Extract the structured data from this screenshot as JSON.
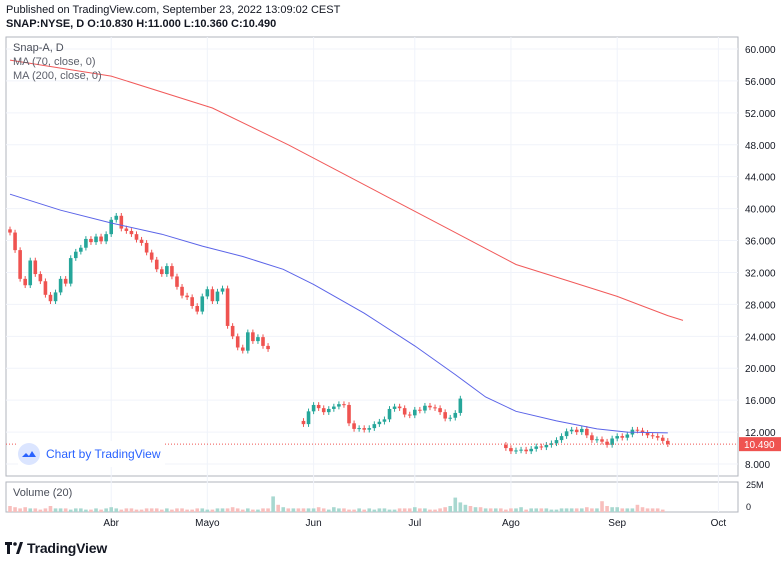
{
  "header": {
    "published": "Published on TradingView.com, September 23, 2022 13:09:02 CEST",
    "ohlc": "SNAP:NYSE, D  O:10.830 H:11.000 L:10.360 C:10.490"
  },
  "legend": {
    "symbol": "Snap-A, D",
    "ma70": "MA (70, close, 0)",
    "ma200": "MA (200, close, 0)",
    "volume": "Volume (20)"
  },
  "badge": {
    "label": "Chart by TradingView",
    "icon": "tradingview-cloud-icon"
  },
  "footer": {
    "label": "TradingView",
    "icon": "tradingview-logo-icon"
  },
  "colors": {
    "up": "#26a69a",
    "down": "#ef5350",
    "ma70": "#5b64e8",
    "ma200": "#f15a5a",
    "vol_up": "#a8d8d0",
    "vol_down": "#f8bfbd",
    "grid": "#f0f3fa",
    "axis": "#b2b5be"
  },
  "chart_data": {
    "type": "candlestick",
    "symbol": "SNAP:NYSE",
    "last_price": "10.490",
    "ylim": [
      6.5,
      61.5
    ],
    "y_ticks": [
      "8.000",
      "12.000",
      "16.000",
      "20.000",
      "24.000",
      "28.000",
      "32.000",
      "36.000",
      "40.000",
      "44.000",
      "48.000",
      "52.000",
      "56.000",
      "60.000"
    ],
    "x_ticks": [
      "Abr",
      "Mayo",
      "Jun",
      "Jul",
      "Ago",
      "Sep",
      "Oct"
    ],
    "volume_ticks": [
      "25M",
      "0"
    ],
    "grid": true,
    "segments": [
      {
        "start_day": 0,
        "closes": [
          37.0,
          34.8,
          31.2,
          30.4,
          33.5,
          31.8,
          30.9,
          29.2,
          28.4,
          29.5,
          31.2,
          30.6,
          33.8,
          34.6,
          35.1,
          36.2,
          35.8,
          36.5,
          35.9,
          36.8,
          38.6,
          39.1,
          37.5,
          37.2,
          36.8,
          36.1,
          35.7,
          34.5,
          33.6,
          32.4,
          31.8,
          32.8,
          31.5,
          30.2,
          29.1,
          28.9,
          27.8,
          27.1,
          29.0,
          29.9,
          28.4,
          29.6,
          30.0,
          25.3,
          24.0,
          22.6,
          22.2,
          24.5,
          23.4,
          23.9,
          22.8,
          22.4
        ]
      },
      {
        "start_day": 58,
        "closes": [
          13.0,
          14.6,
          15.4,
          15.0,
          14.5,
          14.9,
          15.2,
          15.5,
          15.4,
          13.1,
          12.4,
          12.5,
          12.3,
          12.5,
          13.0,
          13.3,
          13.6,
          14.9,
          15.2,
          15.0,
          14.2,
          14.1,
          14.8,
          14.7,
          15.3,
          15.1,
          15.0,
          14.5,
          13.7,
          13.8,
          14.4,
          16.2
        ]
      },
      {
        "start_day": 98,
        "closes": [
          10.0,
          9.6,
          9.7,
          9.8,
          9.6,
          9.9,
          10.2,
          10.1,
          10.4,
          10.6,
          11.0,
          11.5,
          12.1,
          12.3,
          12.0,
          12.4,
          11.6,
          11.0,
          11.1,
          10.8,
          10.4,
          11.2,
          11.5,
          11.3,
          11.7,
          12.3,
          12.2,
          11.9,
          11.6,
          11.5,
          11.3,
          10.9,
          10.49
        ]
      }
    ],
    "ma70": [
      [
        0,
        41.8
      ],
      [
        10,
        39.8
      ],
      [
        20,
        38.2
      ],
      [
        30,
        36.8
      ],
      [
        38,
        35.3
      ],
      [
        46,
        34.0
      ],
      [
        54,
        32.4
      ],
      [
        60,
        30.5
      ],
      [
        70,
        26.9
      ],
      [
        80,
        22.8
      ],
      [
        88,
        19.2
      ],
      [
        94,
        16.4
      ],
      [
        100,
        14.6
      ],
      [
        108,
        13.4
      ],
      [
        116,
        12.4
      ],
      [
        122,
        12.0
      ],
      [
        130,
        11.9
      ]
    ],
    "ma200": [
      [
        0,
        58.6
      ],
      [
        20,
        56.6
      ],
      [
        40,
        52.6
      ],
      [
        55,
        48.0
      ],
      [
        70,
        43.0
      ],
      [
        85,
        38.0
      ],
      [
        100,
        33.0
      ],
      [
        110,
        31.0
      ],
      [
        120,
        29.0
      ],
      [
        130,
        26.6
      ],
      [
        133,
        26.0
      ]
    ],
    "volume_max": 25,
    "volume": [
      5,
      4,
      3,
      4,
      3,
      3,
      2,
      3,
      5,
      3,
      3,
      3,
      2,
      3,
      3,
      2,
      2,
      3,
      2,
      3,
      4,
      3,
      2,
      3,
      3,
      2,
      2,
      3,
      3,
      3,
      2,
      3,
      2,
      3,
      3,
      2,
      2,
      3,
      3,
      2,
      2,
      3,
      3,
      3,
      4,
      3,
      2,
      3,
      2,
      2,
      3,
      3,
      13,
      6,
      4,
      3,
      3,
      3,
      3,
      3,
      3,
      4,
      3,
      2,
      4,
      3,
      3,
      2,
      2,
      3,
      2,
      3,
      2,
      3,
      3,
      2,
      2,
      3,
      3,
      3,
      4,
      3,
      3,
      2,
      2,
      3,
      4,
      5,
      12,
      8,
      6,
      5,
      4,
      4,
      3,
      3,
      3,
      3,
      2,
      3,
      3,
      4,
      2,
      3,
      3,
      3,
      3,
      2,
      2,
      3,
      3,
      3,
      3,
      3,
      4,
      3,
      3,
      9,
      5,
      4,
      4,
      3,
      3,
      3,
      6,
      4,
      3,
      3,
      3,
      2
    ]
  }
}
